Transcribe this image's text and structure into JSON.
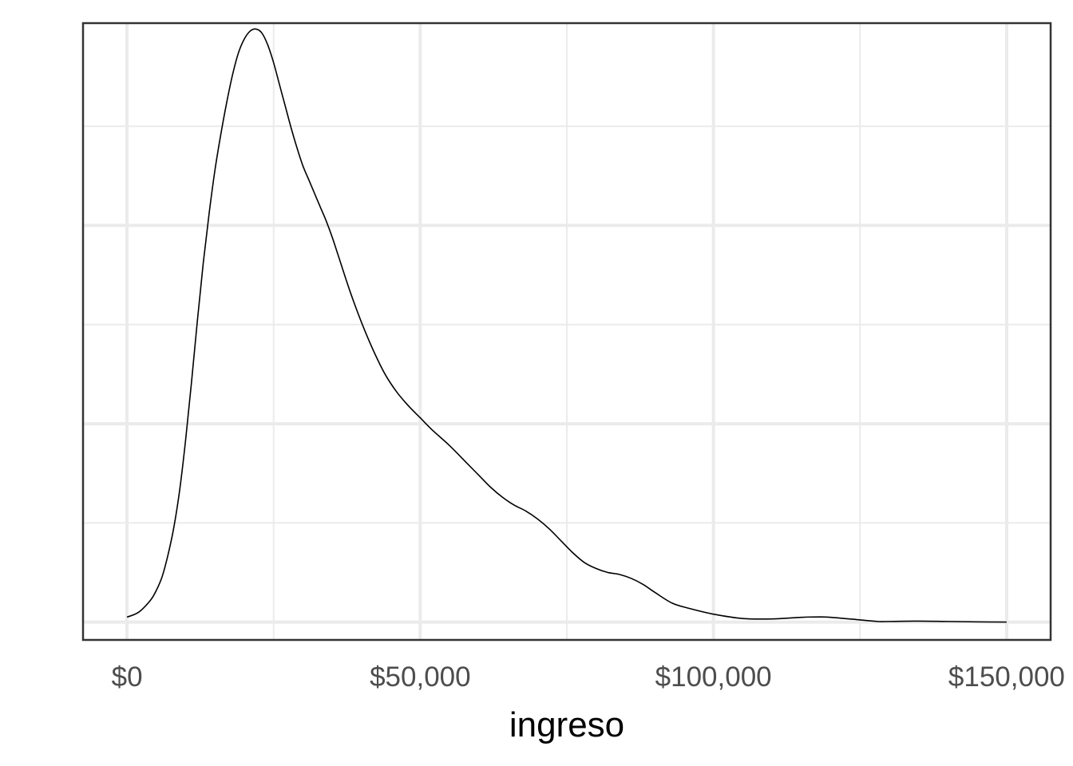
{
  "chart_data": {
    "type": "area",
    "kind": "density",
    "title": "",
    "xlabel": "ingreso",
    "ylabel": "",
    "xlim": [
      -7500,
      157500
    ],
    "ylim": [
      -9e-07,
      3.02e-05
    ],
    "x_ticks": [
      0,
      50000,
      100000,
      150000
    ],
    "x_tick_labels": [
      "$0",
      "$50,000",
      "$100,000",
      "$150,000"
    ],
    "x_minor_ticks": [
      25000,
      75000,
      125000
    ],
    "y_major_ticks": [
      0,
      1e-05,
      2e-05
    ],
    "y_minor_ticks": [
      5e-06,
      1.5e-05,
      2.5e-05
    ],
    "y_tick_labels": "hidden",
    "grid": true,
    "series": [
      {
        "x": [
          0,
          2000,
          4000,
          5000,
          6000,
          7000,
          8000,
          9000,
          10000,
          11000,
          12000,
          13000,
          14000,
          15000,
          16000,
          17000,
          18000,
          19000,
          20000,
          21000,
          22000,
          23000,
          24000,
          25000,
          26000,
          27000,
          28000,
          29000,
          30000,
          31000,
          32000,
          33000,
          34000,
          35000,
          36000,
          38000,
          40000,
          42000,
          44000,
          46000,
          48000,
          50000,
          52000,
          55000,
          58000,
          60000,
          62000,
          64000,
          66000,
          68000,
          70000,
          72000,
          74000,
          76000,
          78000,
          80000,
          82000,
          84000,
          86000,
          88000,
          90000,
          93000,
          96000,
          100000,
          105000,
          110000,
          115000,
          118000,
          120000,
          125000,
          128000,
          130000,
          135000,
          140000,
          145000,
          150000
        ],
        "y": [
          2.5e-07,
          5e-07,
          1.1e-06,
          1.6e-06,
          2.3e-06,
          3.4e-06,
          4.8e-06,
          6.7e-06,
          9.2e-06,
          1.21e-05,
          1.52e-05,
          1.81e-05,
          2.06e-05,
          2.28e-05,
          2.46e-05,
          2.62e-05,
          2.76e-05,
          2.87e-05,
          2.94e-05,
          2.98e-05,
          2.99e-05,
          2.97e-05,
          2.91e-05,
          2.82e-05,
          2.71e-05,
          2.6e-05,
          2.49e-05,
          2.39e-05,
          2.3e-05,
          2.23e-05,
          2.16e-05,
          2.09e-05,
          2.02e-05,
          1.94e-05,
          1.85e-05,
          1.67e-05,
          1.51e-05,
          1.37e-05,
          1.25e-05,
          1.16e-05,
          1.09e-05,
          1.03e-05,
          9.7e-06,
          8.9e-06,
          8e-06,
          7.4e-06,
          6.8e-06,
          6.3e-06,
          5.9e-06,
          5.6e-06,
          5.2e-06,
          4.7e-06,
          4.1e-06,
          3.5e-06,
          3e-06,
          2.7e-06,
          2.5e-06,
          2.4e-06,
          2.2e-06,
          1.9e-06,
          1.5e-06,
          9.5e-07,
          6.8e-07,
          4e-07,
          1.8e-07,
          1.6e-07,
          2.4e-07,
          2.6e-07,
          2.4e-07,
          1.1e-07,
          3e-08,
          3e-08,
          5e-08,
          3e-08,
          1e-08,
          0
        ]
      }
    ]
  }
}
